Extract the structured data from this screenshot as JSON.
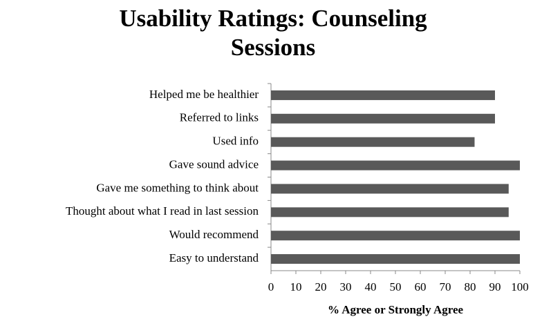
{
  "chart_data": {
    "type": "barh",
    "title": "Usability Ratings: Counseling Sessions",
    "xlabel": "% Agree or Strongly Agree",
    "categories": [
      "Helped me be healthier",
      "Referred to links",
      "Used info",
      "Gave sound advice",
      "Gave me something to think about",
      "Thought about what I read in last session",
      "Would recommend",
      "Easy to understand"
    ],
    "values": [
      90,
      90,
      81.8,
      100,
      95.5,
      95.5,
      100,
      100
    ],
    "color": "#595959",
    "xlim": [
      0,
      100
    ],
    "xticks": [
      0,
      10,
      20,
      30,
      40,
      50,
      60,
      70,
      80,
      90,
      100
    ],
    "grid": false
  }
}
